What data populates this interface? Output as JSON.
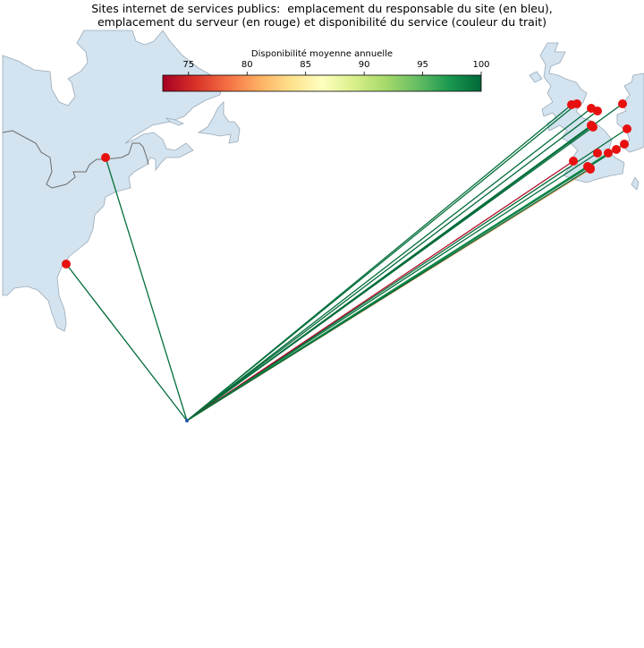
{
  "title": {
    "line1": "Sites internet de services publics:  emplacement du responsable du site (en bleu),",
    "line2": "emplacement du serveur (en rouge) et disponibilité du service (couleur du trait)"
  },
  "colorbar": {
    "label": "Disponibilité moyenne annuelle",
    "min": 72.8,
    "max": 100,
    "ticks": [
      "75",
      "80",
      "85",
      "90",
      "95",
      "100"
    ],
    "tick_values": [
      75,
      80,
      85,
      90,
      95,
      100
    ],
    "colormap": "RdYlGn",
    "stops": [
      "#a50026",
      "#d73027",
      "#f46d43",
      "#fdae61",
      "#fee08b",
      "#ffffbf",
      "#d9ef8b",
      "#a6d96a",
      "#66bd63",
      "#1a9850",
      "#006837"
    ]
  },
  "colors": {
    "land": "#d3e3ef",
    "land_edge": "#9aaab8",
    "border": "#6b6b6b",
    "server_marker": "#e8100f",
    "origin_marker": "#2255aa"
  },
  "connections": [
    {
      "availability": 99.6
    },
    {
      "availability": 99.8
    },
    {
      "availability": 99.7
    },
    {
      "availability": 99.5
    },
    {
      "availability": 99.8
    },
    {
      "availability": 99.9
    },
    {
      "availability": 99.6
    },
    {
      "availability": 99.7
    },
    {
      "availability": 99.8
    },
    {
      "availability": 99.9
    },
    {
      "availability": 73.5
    },
    {
      "availability": 98.5
    },
    {
      "availability": 99.9
    },
    {
      "availability": 97.5
    },
    {
      "availability": 99.5
    },
    {
      "availability": 80.0
    },
    {
      "availability": 98.0
    },
    {
      "availability": 99.8
    }
  ]
}
